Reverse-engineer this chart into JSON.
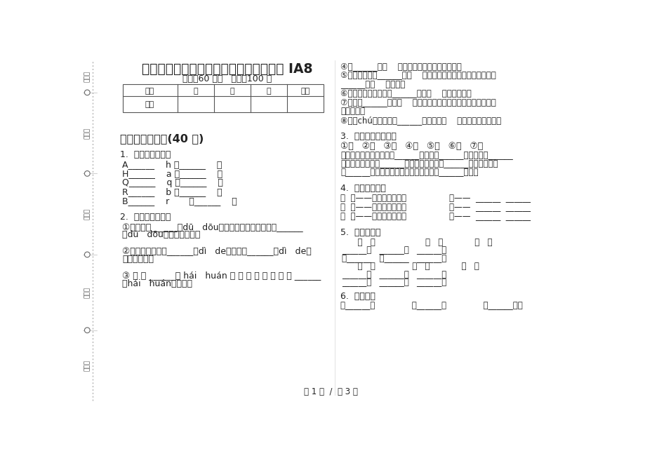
{
  "title": "一年级下学期小学语文期末真题模拟试卷 IA8",
  "subtitle": "时间：60 分钟   满分：100 分",
  "bg_color": "#ffffff",
  "text_color": "#222222",
  "table_headers": [
    "题号",
    "一",
    "二",
    "三",
    "总分"
  ],
  "table_row_label": "得分",
  "left_sidebar_labels": [
    "考号：",
    "考场：",
    "姓名：",
    "班级：",
    "学校："
  ],
  "section1_title": "一、积累与运用(40 分)",
  "q1_title": "1.  认一认，连一连",
  "q1_lines": [
    "A______    h 毛______    查",
    "H______    a 检______    巾",
    "Q______    q 翅______    膀",
    "R______    b 温______    乡",
    "B______    r       思______    暖"
  ],
  "q2_title": "2.  选择正确的答案",
  "q2_lines": [
    "①夜晚的都______（dū   dōu）市，大大小小的街道都______",
    "（dū   dōu）亮起了灯光。",
    "",
    "②农民正在开心地______（dì   de）采摘地______（dì   de）",
    "里的萝卜呢。",
    "",
    "③ 你 还 ______（ hái   huán ） 有 一 本 书 没 有 还 ______",
    "（hái   huán）给我。"
  ],
  "rt_lines": [
    "④我______（己    己）经是一年级的小学生了。",
    "⑤放学了，小莉______（在    再）教室打扫卫生，同学们跟她说",
    "______（在    再）见。",
    "⑥听到这个消息，小明______（经常    非常）开心。",
    "⑦科学家______（发明    发现）了许多高科技的产品，改变了人",
    "们的生活。",
    "⑧橱（chú）窗里摆着______（各种各样    许许多多）的商品。"
  ],
  "q3_title": "3.  照例子，填量词。",
  "q3_nums": "①朵   ②片   ③阵   ④匹   ⑤头   ⑥只   ⑦群",
  "q3_text": [
    "清晨，蓝蓝的天空飘着几______白云，一______小动物在一______",
    "小树林里玩耍，几______小象在捉迷藏，几______小兔在赛跑，",
    "几______马儿在散步，森林中不时吹过一______凉风，"
  ],
  "q4_title": "4.  汉字大变脸。",
  "q4_left": [
    "例  鸟——（乌）（乌云）",
    "例  音——（意）（意思）",
    "例  口——（兄）（兄弟）"
  ],
  "q4_right": [
    "令——  ______  ______",
    "亡——  ______  ______",
    "口——  ______  ______"
  ],
  "q5_title": "5.  选字组词。",
  "q5_lines": [
    "      快   块                   进   近            古   故",
    "______乐   ______门   ______事",
    "一______   远______   ______代",
    "      火   伙              各   个            飞   非",
    "______山   ______人   ______行",
    "______伴   ______种   ______常"
  ],
  "q6_title": "6.  填量词。",
  "q6_line": "一______花              一______诗              一______叶子",
  "footer": "第 1 页  /  共 3 页"
}
